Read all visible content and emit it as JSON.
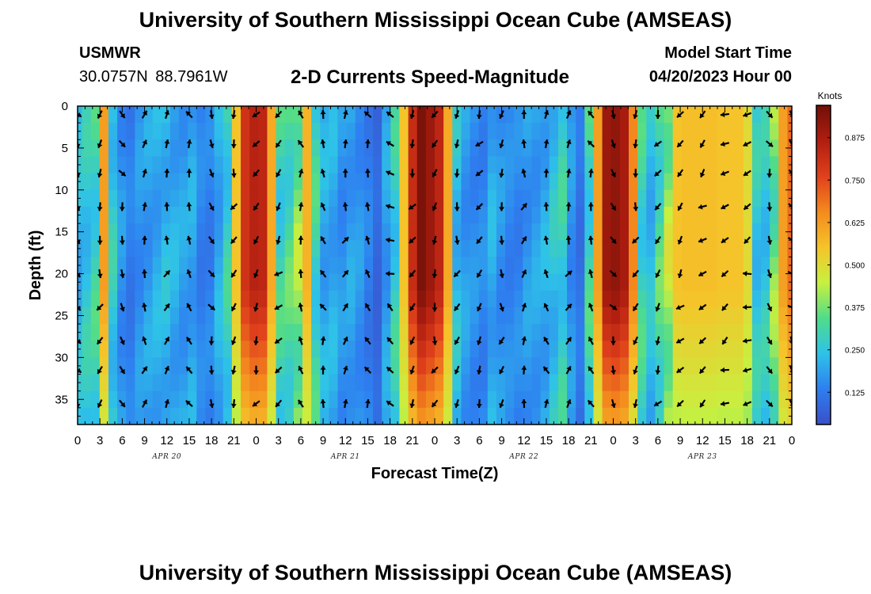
{
  "header": {
    "title": "University of Southern Mississippi Ocean Cube (AMSEAS)",
    "station": "USMWR",
    "coords": "30.0757N 88.7961W",
    "subtitle": "2-D Currents Speed-Magnitude",
    "start_label": "Model Start Time",
    "start_value": "04/20/2023 Hour 00"
  },
  "footer": {
    "title": "University of Southern Mississippi Ocean Cube (AMSEAS)"
  },
  "chart_data": {
    "type": "heatmap",
    "title": "2-D Currents Speed-Magnitude",
    "xlabel": "Forecast Time(Z)",
    "ylabel": "Depth (ft)",
    "x_tick_labels": [
      "0",
      "3",
      "6",
      "9",
      "12",
      "15",
      "18",
      "21",
      "0",
      "3",
      "6",
      "9",
      "12",
      "15",
      "18",
      "21",
      "0",
      "3",
      "6",
      "9",
      "12",
      "15",
      "18",
      "21",
      "0",
      "3",
      "6",
      "9",
      "12",
      "15",
      "18",
      "21",
      "0"
    ],
    "date_labels": [
      "APR 20",
      "APR 21",
      "APR 22",
      "APR 23"
    ],
    "xlim_hours": [
      0,
      96
    ],
    "y_ticks": [
      0,
      5,
      10,
      15,
      20,
      25,
      30,
      35
    ],
    "ylim_ft": [
      0,
      38
    ],
    "y_inverted": true,
    "colorbar": {
      "title": "Knots",
      "ticks": [
        "0.125",
        "0.250",
        "0.375",
        "0.500",
        "0.625",
        "0.750",
        "0.875"
      ],
      "tick_values": [
        0.125,
        0.25,
        0.375,
        0.5,
        0.625,
        0.75,
        0.875
      ],
      "range": [
        0.03,
        0.97
      ],
      "colors": [
        "#3a4fc8",
        "#2e7ff0",
        "#2ec2e8",
        "#50dc8a",
        "#c8f040",
        "#f5c32a",
        "#f48a1e",
        "#e0401c",
        "#b01e10",
        "#701008"
      ]
    },
    "speed_knots_by_hour": [
      0.24,
      0.28,
      0.32,
      0.62,
      0.28,
      0.18,
      0.14,
      0.18,
      0.2,
      0.22,
      0.24,
      0.22,
      0.2,
      0.21,
      0.15,
      0.15,
      0.22,
      0.3,
      0.55,
      0.8,
      0.85,
      0.84,
      0.6,
      0.32,
      0.35,
      0.42,
      0.58,
      0.32,
      0.22,
      0.22,
      0.18,
      0.2,
      0.18,
      0.14,
      0.09,
      0.2,
      0.3,
      0.55,
      0.82,
      0.95,
      0.9,
      0.84,
      0.6,
      0.25,
      0.19,
      0.17,
      0.16,
      0.22,
      0.18,
      0.16,
      0.16,
      0.19,
      0.2,
      0.22,
      0.26,
      0.3,
      0.18,
      0.12,
      0.32,
      0.62,
      0.9,
      0.92,
      0.88,
      0.66,
      0.32,
      0.25,
      0.35,
      0.45,
      0.55,
      0.56,
      0.56,
      0.56,
      0.56,
      0.55,
      0.55,
      0.55,
      0.5,
      0.28,
      0.28,
      0.4,
      0.62,
      0.7
    ],
    "vectors_by_hour_deg": {
      "hours": [
        0,
        3,
        6,
        9,
        12,
        15,
        18,
        21,
        24,
        27,
        30,
        33,
        36,
        39,
        42,
        45,
        48,
        51,
        54,
        57,
        60,
        63,
        66,
        69,
        72,
        75,
        78,
        81,
        84,
        87,
        90,
        93,
        96
      ],
      "direction_deg": [
        150,
        200,
        160,
        10,
        20,
        340,
        160,
        200,
        210,
        220,
        350,
        340,
        20,
        340,
        300,
        210,
        200,
        200,
        210,
        190,
        10,
        350,
        20,
        340,
        150,
        200,
        210,
        220,
        230,
        240,
        250,
        160,
        140
      ]
    }
  }
}
